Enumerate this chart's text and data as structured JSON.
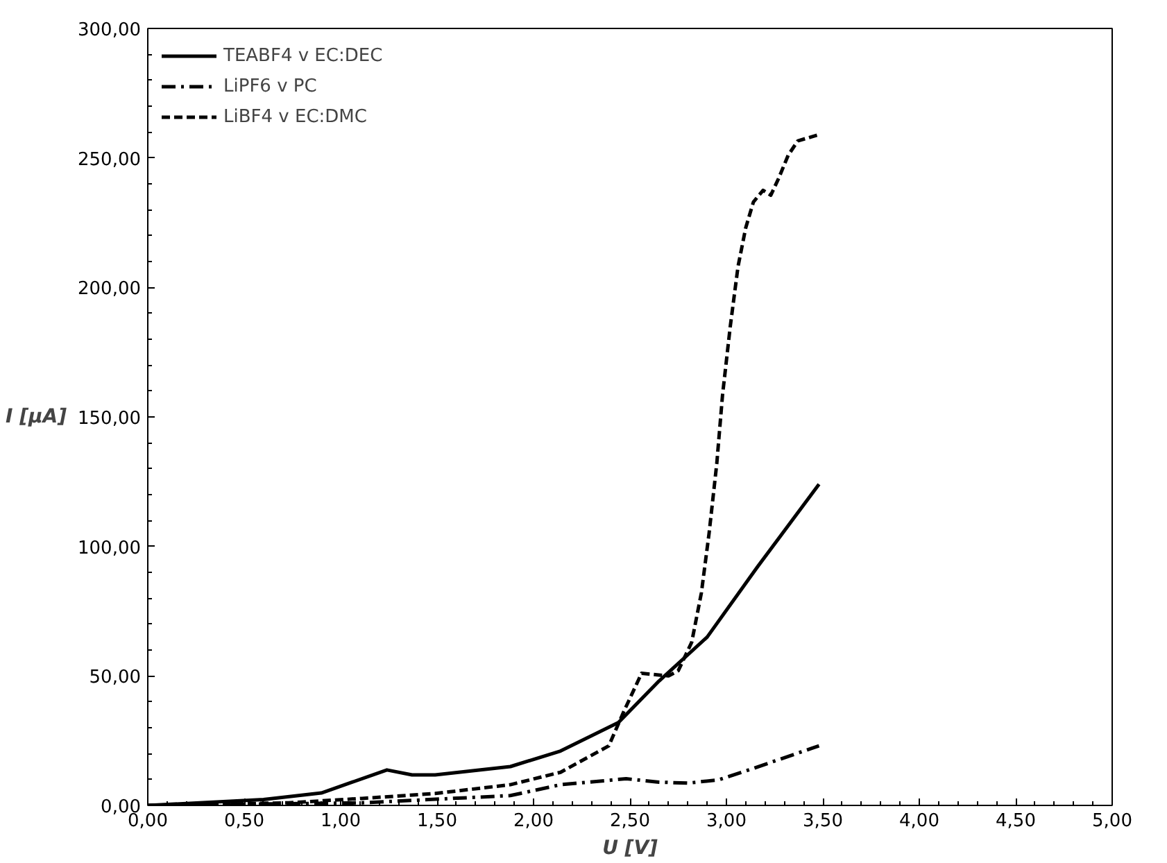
{
  "chart_data": {
    "type": "line",
    "xlabel": "U [V]",
    "ylabel": "I [µA]",
    "xlim": [
      0,
      5
    ],
    "ylim": [
      0,
      300
    ],
    "xticks": [
      {
        "value": 0,
        "label": "0,00"
      },
      {
        "value": 0.5,
        "label": "0,50"
      },
      {
        "value": 1,
        "label": "1,00"
      },
      {
        "value": 1.5,
        "label": "1,50"
      },
      {
        "value": 2,
        "label": "2,00"
      },
      {
        "value": 2.5,
        "label": "2,50"
      },
      {
        "value": 3,
        "label": "3,00"
      },
      {
        "value": 3.5,
        "label": "3,50"
      },
      {
        "value": 4,
        "label": "4,00"
      },
      {
        "value": 4.5,
        "label": "4,50"
      },
      {
        "value": 5,
        "label": "5,00"
      }
    ],
    "yticks": [
      {
        "value": 0,
        "label": "0,00"
      },
      {
        "value": 50,
        "label": "50,00"
      },
      {
        "value": 100,
        "label": "100,00"
      },
      {
        "value": 150,
        "label": "150,00"
      },
      {
        "value": 200,
        "label": "200,00"
      },
      {
        "value": 250,
        "label": "250,00"
      },
      {
        "value": 300,
        "label": "300,00"
      }
    ],
    "grid": false,
    "legend": "top left",
    "marker": "none",
    "series": [
      {
        "name": "TEABF4 v EC:DEC",
        "color": "#000000",
        "line_style": "solid",
        "x": [
          0,
          0.6,
          0.9,
          1.06,
          1.24,
          1.37,
          1.49,
          1.88,
          2.14,
          2.44,
          2.65,
          2.9,
          3.16,
          3.48
        ],
        "values": [
          0,
          2.3,
          4.8,
          9,
          13.7,
          11.8,
          11.8,
          15,
          21,
          32,
          48,
          65,
          92,
          124
        ]
      },
      {
        "name": "LiPF6 v PC",
        "color": "#000000",
        "line_style": "dashdot",
        "x": [
          0,
          1.11,
          1.88,
          2.14,
          2.48,
          2.65,
          2.8,
          2.96,
          3.14,
          3.44,
          3.48
        ],
        "values": [
          0,
          1,
          3.8,
          8,
          10.3,
          9,
          8.6,
          9.9,
          14.3,
          22,
          23
        ]
      },
      {
        "name": "LiBF4 v EC:DMC",
        "color": "#000000",
        "line_style": "dashed",
        "x": [
          0,
          0.73,
          1.11,
          1.49,
          1.88,
          2.14,
          2.39,
          2.47,
          2.56,
          2.7,
          2.75,
          2.82,
          2.87,
          2.91,
          2.95,
          2.98,
          3.02,
          3.06,
          3.1,
          3.14,
          3.19,
          3.23,
          3.27,
          3.32,
          3.37,
          3.48
        ],
        "values": [
          0,
          1,
          2.7,
          4.6,
          8,
          12.8,
          23,
          36.6,
          51,
          50,
          52,
          63,
          82,
          105,
          132,
          158.6,
          185,
          208,
          223,
          233,
          237.5,
          235.6,
          242,
          251,
          256.6,
          259
        ]
      }
    ]
  }
}
